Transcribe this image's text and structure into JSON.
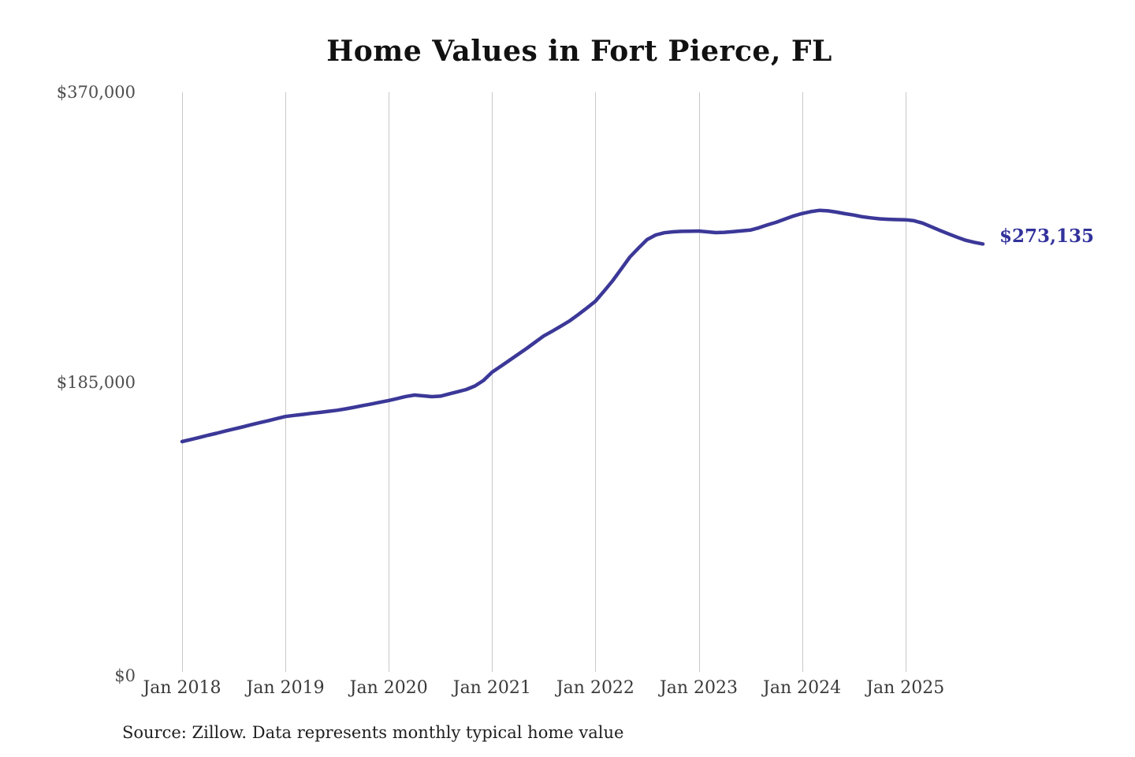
{
  "title": "Home Values in Fort Pierce, FL",
  "source_note": "Source: Zillow. Data represents monthly typical home value",
  "final_value_label": "$273,135",
  "colors": {
    "line": "#3b3898",
    "final_label": "#32329b",
    "grid": "#c8c8c8",
    "y_axis_text": "#4d4d4d",
    "x_axis_text": "#3a3a3a",
    "title_text": "#111111",
    "source_text": "#1f1f1f"
  },
  "chart_data": {
    "type": "line",
    "title": "Home Values in Fort Pierce, FL",
    "xlabel": "",
    "ylabel": "",
    "x_start_month": "Jan 2018",
    "x_end_month": "Oct 2025",
    "x_tick_labels": [
      "Jan 2018",
      "Jan 2019",
      "Jan 2020",
      "Jan 2021",
      "Jan 2022",
      "Jan 2023",
      "Jan 2024",
      "Jan 2025"
    ],
    "y_tick_labels": [
      "$370,000",
      "$185,000",
      "$0"
    ],
    "y_tick_values": [
      370000,
      185000,
      0
    ],
    "ylim": [
      0,
      370000
    ],
    "grid": "vertical-only",
    "legend": "none",
    "final_value": 273135,
    "series": [
      {
        "name": "Monthly typical home value (USD)",
        "months_per_point": 1,
        "values": [
          147000,
          148300,
          149600,
          151000,
          152300,
          153700,
          155000,
          156300,
          157700,
          159000,
          160300,
          161700,
          163000,
          163700,
          164300,
          165000,
          165600,
          166300,
          167000,
          167900,
          168900,
          170000,
          171000,
          172100,
          173200,
          174500,
          175800,
          176700,
          176200,
          175700,
          176000,
          177400,
          178800,
          180200,
          182500,
          186000,
          191300,
          195000,
          198800,
          202600,
          206400,
          210400,
          214400,
          217500,
          220700,
          224000,
          228000,
          232200,
          236600,
          243000,
          249700,
          257200,
          264800,
          270500,
          275900,
          278900,
          280300,
          280900,
          281200,
          281300,
          281400,
          280900,
          280400,
          280600,
          281000,
          281500,
          282000,
          283500,
          285400,
          287000,
          289000,
          291000,
          292600,
          293800,
          294600,
          294300,
          293500,
          292500,
          291600,
          290500,
          289800,
          289200,
          288900,
          288700,
          288600,
          288000,
          286500,
          284100,
          281800,
          279600,
          277500,
          275500,
          274200,
          273135
        ]
      }
    ]
  }
}
